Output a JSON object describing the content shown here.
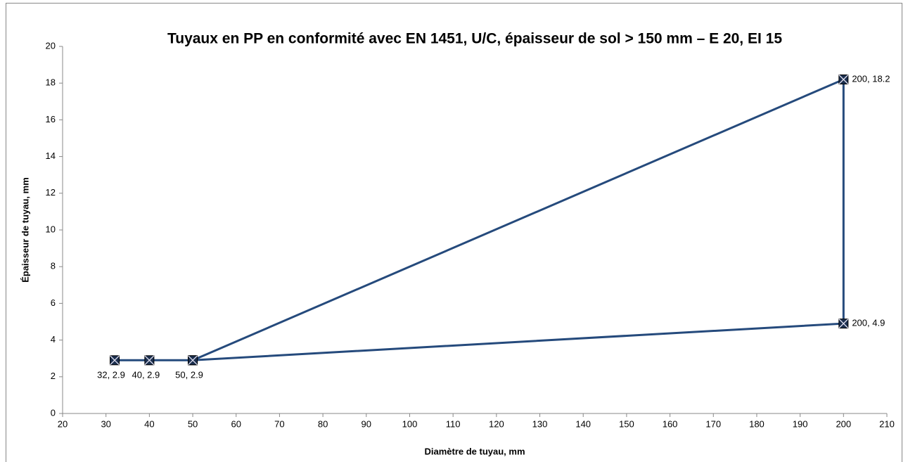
{
  "chart_data": {
    "type": "line",
    "title": "Tuyaux en PP en conformité avec EN 1451, U/C, épaisseur de sol > 150 mm – E 20, EI 15",
    "x_label": "Diamètre de tuyau, mm",
    "y_label": "Épaisseur de tuyau, mm",
    "series": [
      {
        "color": "#254a7c",
        "x": [
          32,
          40,
          50,
          200,
          200,
          50
        ],
        "values": [
          2.9,
          2.9,
          2.9,
          18.2,
          4.9,
          2.9
        ],
        "value_labels": [
          "32, 2.9",
          "40, 2.9",
          "50, 2.9",
          "200, 18.2",
          "200, 4.9",
          null
        ]
      }
    ],
    "xlim": [
      20,
      210
    ],
    "xticks": [
      20,
      30,
      40,
      50,
      60,
      70,
      80,
      90,
      100,
      110,
      120,
      130,
      140,
      150,
      160,
      170,
      180,
      190,
      200,
      210
    ],
    "ylim": [
      0,
      20
    ],
    "yticks": [
      0,
      2,
      4,
      6,
      8,
      10,
      12,
      14,
      16,
      18,
      20
    ],
    "grid": false
  }
}
